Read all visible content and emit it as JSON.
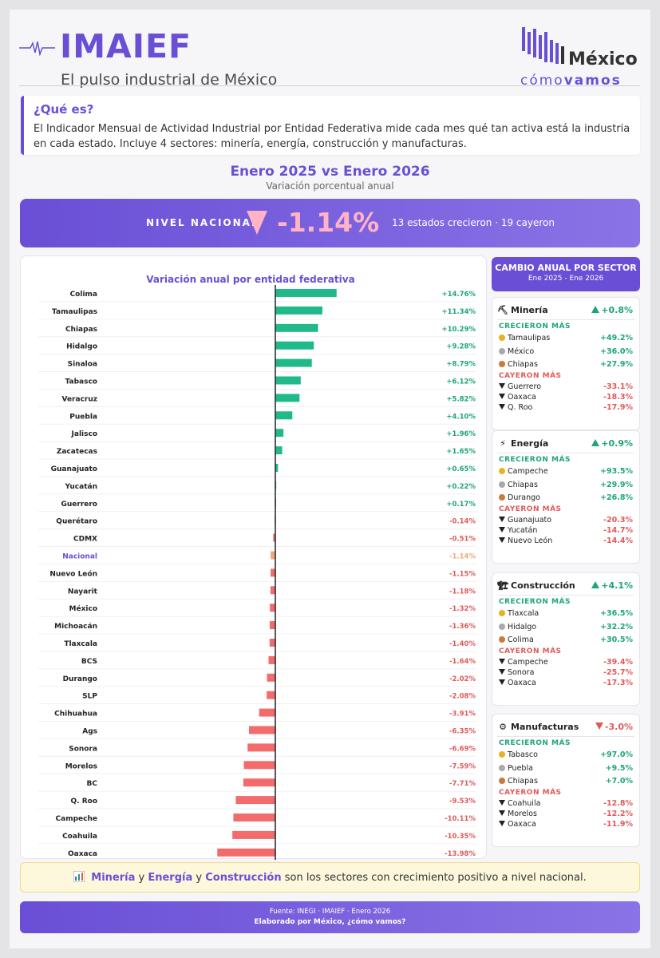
{
  "header": {
    "title": "IMAIEF",
    "subtitle": "El pulso industrial de México",
    "logo_top": "México",
    "logo_bottom_a": "cómo",
    "logo_bottom_b": "vamos"
  },
  "intro": {
    "heading": "¿Qué es?",
    "text": "El Indicador Mensual de Actividad Industrial por Entidad Federativa mide cada mes qué tan activa está la industria en cada estado. Incluye 4 sectores: minería, energía, construcción y manufacturas."
  },
  "period": {
    "title": "Enero 2025 vs Enero 2026",
    "subtitle": "Variación porcentual anual"
  },
  "national": {
    "label": "NIVEL NACIONAL",
    "value": "-1.14%",
    "note": "13 estados crecieron · 19 cayeron"
  },
  "chart_data": {
    "type": "bar",
    "orientation": "horizontal",
    "title": "Variación anual por entidad federativa",
    "categories": [
      "Colima",
      "Tamaulipas",
      "Chiapas",
      "Hidalgo",
      "Sinaloa",
      "Tabasco",
      "Veracruz",
      "Puebla",
      "Jalisco",
      "Zacatecas",
      "Guanajuato",
      "Yucatán",
      "Guerrero",
      "Querétaro",
      "CDMX",
      "Nacional",
      "Nuevo León",
      "Nayarit",
      "México",
      "Michoacán",
      "Tlaxcala",
      "BCS",
      "Durango",
      "SLP",
      "Chihuahua",
      "Ags",
      "Sonora",
      "Morelos",
      "BC",
      "Q. Roo",
      "Campeche",
      "Coahuila",
      "Oaxaca"
    ],
    "values": [
      14.76,
      11.34,
      10.29,
      9.28,
      8.79,
      6.12,
      5.82,
      4.1,
      1.96,
      1.65,
      0.65,
      0.22,
      0.17,
      -0.14,
      -0.51,
      -1.14,
      -1.15,
      -1.18,
      -1.32,
      -1.36,
      -1.4,
      -1.64,
      -2.02,
      -2.08,
      -3.91,
      -6.35,
      -6.69,
      -7.59,
      -7.71,
      -9.53,
      -10.11,
      -10.35,
      -13.98
    ],
    "labels": [
      "+14.76%",
      "+11.34%",
      "+10.29%",
      "+9.28%",
      "+8.79%",
      "+6.12%",
      "+5.82%",
      "+4.10%",
      "+1.96%",
      "+1.65%",
      "+0.65%",
      "+0.22%",
      "+0.17%",
      "-0.14%",
      "-0.51%",
      "-1.14%",
      "-1.15%",
      "-1.18%",
      "-1.32%",
      "-1.36%",
      "-1.40%",
      "-1.64%",
      "-2.02%",
      "-2.08%",
      "-3.91%",
      "-6.35%",
      "-6.69%",
      "-7.59%",
      "-7.71%",
      "-9.53%",
      "-10.11%",
      "-10.35%",
      "-13.98%"
    ],
    "highlight": "Nacional",
    "colors": {
      "positive": "#1fb98a",
      "negative": "#f36b6b",
      "highlight": "#f4a77a",
      "highlight_label": "#6a4fd6"
    }
  },
  "sectors": {
    "heading": "CAMBIO ANUAL POR SECTOR",
    "subheading": "Ene 2025 - Ene 2026",
    "grow_label": "CRECIERON MÁS",
    "fall_label": "CAYERON MÁS",
    "cards": [
      {
        "icon": "pickaxe-icon",
        "glyph": "⛏",
        "name": "Minería",
        "total": "+0.8%",
        "direction": "up",
        "up": [
          {
            "name": "Tamaulipas",
            "value": "+49.2%"
          },
          {
            "name": "México",
            "value": "+36.0%"
          },
          {
            "name": "Chiapas",
            "value": "+27.9%"
          }
        ],
        "down": [
          {
            "name": "Guerrero",
            "value": "-33.1%"
          },
          {
            "name": "Oaxaca",
            "value": "-18.3%"
          },
          {
            "name": "Q. Roo",
            "value": "-17.9%"
          }
        ]
      },
      {
        "icon": "lightning-icon",
        "glyph": "⚡",
        "name": "Energía",
        "total": "+0.9%",
        "direction": "up",
        "up": [
          {
            "name": "Campeche",
            "value": "+93.5%"
          },
          {
            "name": "Chiapas",
            "value": "+29.9%"
          },
          {
            "name": "Durango",
            "value": "+26.8%"
          }
        ],
        "down": [
          {
            "name": "Guanajuato",
            "value": "-20.3%"
          },
          {
            "name": "Yucatán",
            "value": "-14.7%"
          },
          {
            "name": "Nuevo León",
            "value": "-14.4%"
          }
        ]
      },
      {
        "icon": "crane-icon",
        "glyph": "🏗",
        "name": "Construcción",
        "total": "+4.1%",
        "direction": "up",
        "up": [
          {
            "name": "Tlaxcala",
            "value": "+36.5%"
          },
          {
            "name": "Hidalgo",
            "value": "+32.2%"
          },
          {
            "name": "Colima",
            "value": "+30.5%"
          }
        ],
        "down": [
          {
            "name": "Campeche",
            "value": "-39.4%"
          },
          {
            "name": "Sonora",
            "value": "-25.7%"
          },
          {
            "name": "Oaxaca",
            "value": "-17.3%"
          }
        ]
      },
      {
        "icon": "gear-icon",
        "glyph": "⚙",
        "name": "Manufacturas",
        "total": "-3.0%",
        "direction": "down",
        "up": [
          {
            "name": "Tabasco",
            "value": "+97.0%"
          },
          {
            "name": "Puebla",
            "value": "+9.5%"
          },
          {
            "name": "Chiapas",
            "value": "+7.0%"
          }
        ],
        "down": [
          {
            "name": "Coahuila",
            "value": "-12.8%"
          },
          {
            "name": "Morelos",
            "value": "-12.2%"
          },
          {
            "name": "Oaxaca",
            "value": "-11.9%"
          }
        ]
      }
    ]
  },
  "note": {
    "s1": "Minería",
    "y1": " y ",
    "s2": "Energía",
    "y2": " y ",
    "s3": "Construcción",
    "rest": " son los sectores con crecimiento positivo a nivel nacional."
  },
  "footer": {
    "source": "Fuente: INEGI · IMAIEF · Enero 2026",
    "credit": "Elaborado por México, ¿cómo vamos?"
  },
  "colors": {
    "accent": "#6a4fd6",
    "positive": "#1ea47a",
    "negative": "#e05a5a"
  }
}
